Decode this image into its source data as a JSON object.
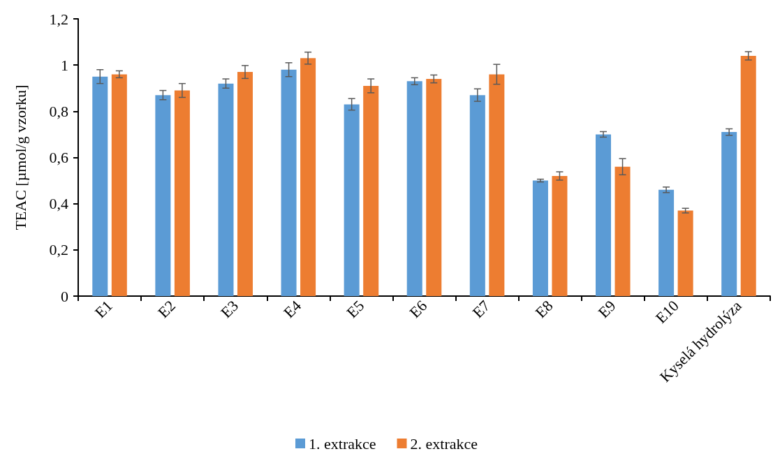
{
  "chart_data": {
    "type": "bar",
    "ylabel": "TEAC [µmol/g vzorku]",
    "categories": [
      "E1",
      "E2",
      "E3",
      "E4",
      "E5",
      "E6",
      "E7",
      "E8",
      "E9",
      "E10",
      "Kyselá hydrolýza"
    ],
    "series": [
      {
        "name": "1. extrakce",
        "color": "#5b9bd5",
        "values": [
          0.95,
          0.87,
          0.92,
          0.98,
          0.83,
          0.93,
          0.87,
          0.5,
          0.7,
          0.46,
          0.71
        ],
        "errors": [
          0.03,
          0.02,
          0.02,
          0.03,
          0.025,
          0.015,
          0.027,
          0.006,
          0.012,
          0.012,
          0.014
        ]
      },
      {
        "name": "2. extrakce",
        "color": "#ed7d31",
        "values": [
          0.96,
          0.89,
          0.97,
          1.03,
          0.91,
          0.94,
          0.96,
          0.52,
          0.56,
          0.37,
          1.04
        ],
        "errors": [
          0.015,
          0.03,
          0.028,
          0.026,
          0.03,
          0.017,
          0.043,
          0.018,
          0.035,
          0.01,
          0.018
        ]
      }
    ],
    "ylim": [
      0,
      1.2
    ],
    "yticks": [
      0,
      {
        "value": 0.2,
        "label": "0,2"
      },
      {
        "value": 0.4,
        "label": "0,4"
      },
      {
        "value": 0.6,
        "label": "0,6"
      },
      {
        "value": 0.8,
        "label": "0,8"
      },
      1,
      {
        "value": 1.2,
        "label": "1,2"
      }
    ],
    "grid": false,
    "legend": "bottom"
  }
}
